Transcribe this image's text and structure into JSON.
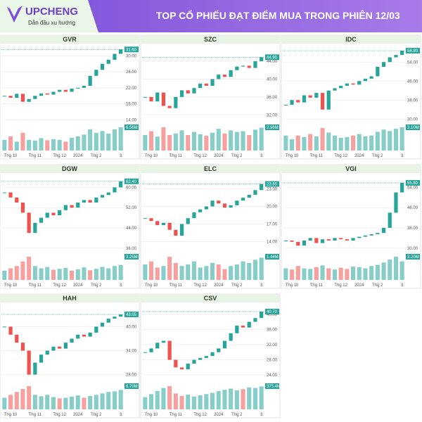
{
  "header": {
    "brand": "UPCHENG",
    "slogan": "Dẫn đầu xu hướng",
    "title": "TOP CỔ PHIẾU ĐẠT ĐIỂM MUA TRONG PHIÊN 12/03"
  },
  "chart_data": [
    {
      "type": "candlestick",
      "title": "GVR",
      "categories": [
        null,
        "Thg 10",
        null,
        null,
        null,
        "Thg 11",
        null,
        null,
        null,
        "Thg 12",
        null,
        null,
        "2024",
        null,
        null,
        "Thg 2",
        null,
        null,
        null,
        "3"
      ],
      "ylim": [
        13,
        32
      ],
      "yticks": [
        {
          "value": 14,
          "label": "14.00"
        },
        {
          "value": 18,
          "label": "18.00"
        },
        {
          "value": 22,
          "label": "22.00"
        },
        {
          "value": 26,
          "label": "26.00"
        },
        {
          "value": 30,
          "label": "30.00"
        }
      ],
      "close": [
        20,
        19.5,
        20.5,
        18.5,
        19.2,
        20,
        20.6,
        20.3,
        21,
        21.5,
        21,
        21.8,
        22,
        22.5,
        25,
        26.5,
        28,
        29,
        30.5,
        31.6
      ],
      "volume": [
        3,
        4,
        2.5,
        5,
        3,
        2.8,
        3.5,
        2.9,
        3.2,
        3,
        2.5,
        3.6,
        4,
        4.5,
        6,
        5,
        5.5,
        4.8,
        6,
        6.56
      ],
      "last_price_label": "31.60",
      "last_volume_label": "6.56M"
    },
    {
      "type": "candlestick",
      "title": "SZC",
      "categories": [
        null,
        "Thg 10",
        null,
        null,
        null,
        "Thg 11",
        null,
        null,
        null,
        "Thg 12",
        null,
        null,
        "2024",
        null,
        null,
        "Thg 2",
        null,
        null,
        null,
        "3"
      ],
      "ylim": [
        30,
        47
      ],
      "yticks": [
        {
          "value": 32,
          "label": "32.00"
        },
        {
          "value": 36,
          "label": "36.00"
        },
        {
          "value": 40,
          "label": "40.00"
        },
        {
          "value": 44,
          "label": "44.00"
        }
      ],
      "close": [
        36,
        35,
        37,
        34,
        33.5,
        36,
        37.5,
        36.8,
        38,
        39,
        38.5,
        40,
        41,
        40.5,
        42,
        42.8,
        43,
        42.5,
        44,
        44.9
      ],
      "volume": [
        2,
        2.5,
        1.8,
        3,
        2,
        2.2,
        2.6,
        2,
        2.4,
        2.1,
        1.9,
        2.3,
        2.8,
        2.2,
        2.6,
        2.4,
        2.5,
        2,
        2.7,
        2.96
      ],
      "last_price_label": "44.90",
      "last_volume_label": "2.96M"
    },
    {
      "type": "candlestick",
      "title": "IDC",
      "categories": [
        null,
        "Thg 10",
        null,
        null,
        null,
        "Thg 11",
        null,
        null,
        null,
        "Thg 12",
        null,
        null,
        "2024",
        null,
        null,
        "Thg 2",
        null,
        null,
        null,
        "3"
      ],
      "ylim": [
        28,
        60
      ],
      "yticks": [
        {
          "value": 30,
          "label": "30.00"
        },
        {
          "value": 38,
          "label": "38.00"
        },
        {
          "value": 46,
          "label": "46.00"
        },
        {
          "value": 54,
          "label": "54.00"
        }
      ],
      "close": [
        36,
        38,
        37,
        40,
        39,
        41,
        34,
        42,
        43,
        44,
        45,
        44.5,
        46,
        47,
        48,
        52,
        54,
        56,
        57,
        58.8
      ],
      "volume": [
        2,
        1.5,
        2,
        1.8,
        2.2,
        1.9,
        3,
        2.4,
        2,
        1.7,
        1.8,
        2,
        2.2,
        1.9,
        2,
        2.5,
        2.8,
        2.6,
        2.9,
        3.1
      ],
      "last_price_label": "58.80",
      "last_volume_label": "3.10M"
    },
    {
      "type": "candlestick",
      "title": "DGW",
      "categories": [
        null,
        "Thg 10",
        null,
        null,
        null,
        "Thg 11",
        null,
        null,
        null,
        "Thg 12",
        null,
        null,
        "2024",
        null,
        null,
        "Thg 2",
        null,
        null,
        null,
        "3"
      ],
      "ylim": [
        34,
        64
      ],
      "yticks": [
        {
          "value": 36,
          "label": "36.00"
        },
        {
          "value": 44,
          "label": "44.00"
        },
        {
          "value": 52,
          "label": "52.00"
        },
        {
          "value": 60,
          "label": "60.00"
        }
      ],
      "close": [
        58,
        56,
        54,
        50,
        42,
        46,
        48,
        50,
        49,
        51,
        53,
        52,
        54,
        55,
        54,
        56,
        57,
        58,
        60,
        62.4
      ],
      "volume": [
        2,
        2.5,
        3,
        4,
        5,
        3,
        2.5,
        2.8,
        2.2,
        2.4,
        2.6,
        2,
        2.3,
        2.7,
        2.1,
        2.4,
        2.8,
        2.5,
        3,
        3.25
      ],
      "last_price_label": "62.40",
      "last_volume_label": "3.25M"
    },
    {
      "type": "candlestick",
      "title": "ELC",
      "categories": [
        null,
        "Thg 10",
        null,
        null,
        null,
        "Thg 11",
        null,
        null,
        null,
        "Thg 12",
        null,
        null,
        "2024",
        null,
        null,
        "Thg 2",
        null,
        null,
        null,
        "3"
      ],
      "ylim": [
        12,
        25
      ],
      "yticks": [
        {
          "value": 14,
          "label": "14.00"
        },
        {
          "value": 17,
          "label": "17.00"
        },
        {
          "value": 20,
          "label": "20.00"
        },
        {
          "value": 23,
          "label": "23.00"
        }
      ],
      "close": [
        18,
        17.5,
        16.8,
        17.2,
        16,
        15,
        17,
        18,
        19,
        19.5,
        20,
        21,
        20.5,
        19.8,
        20.2,
        21,
        21.5,
        22,
        22.8,
        23.85
      ],
      "volume": [
        1,
        1.2,
        0.8,
        0.9,
        1.5,
        1.1,
        0.9,
        1,
        1.2,
        0.8,
        0.9,
        1.1,
        1,
        0.7,
        0.9,
        1,
        1.2,
        1.1,
        1.3,
        1.44
      ],
      "last_price_label": "23.85",
      "last_volume_label": "1.44M"
    },
    {
      "type": "candlestick",
      "title": "VGI",
      "categories": [
        null,
        "Thg 10",
        null,
        null,
        null,
        "Thg 11",
        null,
        null,
        null,
        "Thg 12",
        null,
        null,
        "2024",
        null,
        null,
        "Thg 2",
        null,
        null,
        null,
        "3"
      ],
      "ylim": [
        28,
        58
      ],
      "yticks": [
        {
          "value": 30,
          "label": "30.00"
        },
        {
          "value": 38,
          "label": "38.00"
        },
        {
          "value": 46,
          "label": "46.00"
        },
        {
          "value": 54,
          "label": "54.00"
        }
      ],
      "close": [
        33,
        32.5,
        31,
        33,
        34,
        32,
        33.5,
        33,
        34,
        33.5,
        33,
        34,
        34.5,
        35,
        35.5,
        36,
        38,
        44,
        52,
        55.8
      ],
      "volume": [
        2,
        1.8,
        2.4,
        2,
        1.9,
        2.2,
        2.5,
        2,
        1.8,
        2.1,
        1.9,
        2.3,
        2.2,
        2,
        2.4,
        2.6,
        3,
        3.5,
        4,
        3.2
      ],
      "last_price_label": "55.80",
      "last_volume_label": "3.20M"
    },
    {
      "type": "candlestick",
      "title": "HAH",
      "categories": [
        null,
        "Thg 10",
        null,
        null,
        null,
        "Thg 11",
        null,
        null,
        null,
        "Thg 12",
        null,
        null,
        "2024",
        null,
        null,
        "Thg 2",
        null,
        null,
        null,
        "3"
      ],
      "ylim": [
        26,
        45
      ],
      "yticks": [
        {
          "value": 28,
          "label": "28.00"
        },
        {
          "value": 34,
          "label": "34.00"
        },
        {
          "value": 40,
          "label": "40.00"
        }
      ],
      "close": [
        40,
        38,
        36,
        34,
        28,
        31,
        33,
        34,
        35,
        34.5,
        36,
        37,
        38,
        37.5,
        38.5,
        40,
        41,
        42,
        42.5,
        43.05
      ],
      "volume": [
        4,
        5,
        6,
        7,
        8,
        5,
        4.5,
        5,
        4.2,
        3.8,
        4,
        4.4,
        4.8,
        4,
        4.6,
        5,
        5.5,
        6,
        6.2,
        6.7
      ],
      "last_price_label": "43.05",
      "last_volume_label": "6.70M"
    },
    {
      "type": "candlestick",
      "title": "CSV",
      "categories": [
        null,
        "Thg 10",
        null,
        null,
        null,
        "Thg 11",
        null,
        null,
        null,
        "Thg 12",
        null,
        null,
        "2024",
        null,
        null,
        "Thg 2",
        null,
        null,
        null,
        "3"
      ],
      "ylim": [
        22,
        42
      ],
      "yticks": [
        {
          "value": 24,
          "label": "24.00"
        },
        {
          "value": 28,
          "label": "28.00"
        },
        {
          "value": 32,
          "label": "32.00"
        },
        {
          "value": 36,
          "label": "36.00"
        },
        {
          "value": 40,
          "label": "40.00"
        }
      ],
      "close": [
        30,
        31,
        32.5,
        33,
        28,
        26,
        25.5,
        27,
        28,
        28.5,
        29,
        30,
        31,
        33,
        35,
        37,
        36.5,
        38,
        39,
        40.7
      ],
      "volume": [
        200,
        250,
        300,
        350,
        380,
        260,
        220,
        240,
        210,
        230,
        250,
        270,
        300,
        320,
        340,
        310,
        330,
        360,
        350,
        375.4
      ],
      "last_price_label": "40.70",
      "last_volume_label": "375.4K"
    }
  ]
}
